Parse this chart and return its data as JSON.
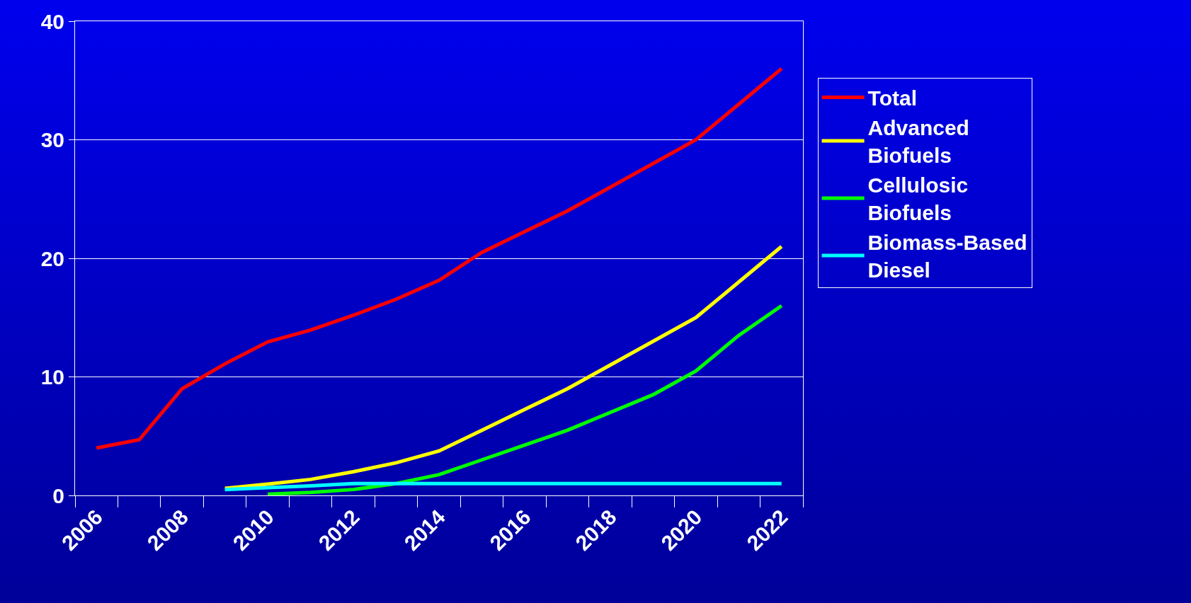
{
  "chart_data": {
    "type": "line",
    "categories": [
      "2006",
      null,
      "2008",
      null,
      "2010",
      null,
      "2012",
      null,
      "2014",
      null,
      "2016",
      null,
      "2018",
      null,
      "2020",
      null,
      "2022"
    ],
    "series": [
      {
        "name": "Total",
        "color": "#ff0000",
        "values": [
          4.0,
          4.7,
          9.0,
          11.1,
          12.95,
          13.95,
          15.2,
          16.55,
          18.15,
          20.5,
          22.25,
          24.0,
          26.0,
          28.0,
          30.0,
          33.0,
          36.0
        ]
      },
      {
        "name": "Advanced Biofuels",
        "color": "#ffff00",
        "values": [
          null,
          null,
          null,
          0.6,
          0.95,
          1.35,
          2.0,
          2.75,
          3.75,
          5.5,
          7.25,
          9.0,
          11.0,
          13.0,
          15.0,
          18.0,
          21.0
        ]
      },
      {
        "name": "Cellulosic Biofuels",
        "color": "#00ff00",
        "values": [
          null,
          null,
          null,
          null,
          0.1,
          0.25,
          0.5,
          1.0,
          1.75,
          3.0,
          4.25,
          5.5,
          7.0,
          8.5,
          10.5,
          13.5,
          16.0
        ]
      },
      {
        "name": "Biomass-Based Diesel",
        "color": "#00ffff",
        "values": [
          null,
          null,
          null,
          0.5,
          0.65,
          0.8,
          1.0,
          1.0,
          1.0,
          1.0,
          1.0,
          1.0,
          1.0,
          1.0,
          1.0,
          1.0,
          1.0
        ]
      }
    ],
    "ylim": [
      0,
      40
    ],
    "yticks": [
      0,
      10,
      20,
      30,
      40
    ],
    "grid": "y",
    "legend": "right",
    "line_style": "solid",
    "marker": "none"
  }
}
